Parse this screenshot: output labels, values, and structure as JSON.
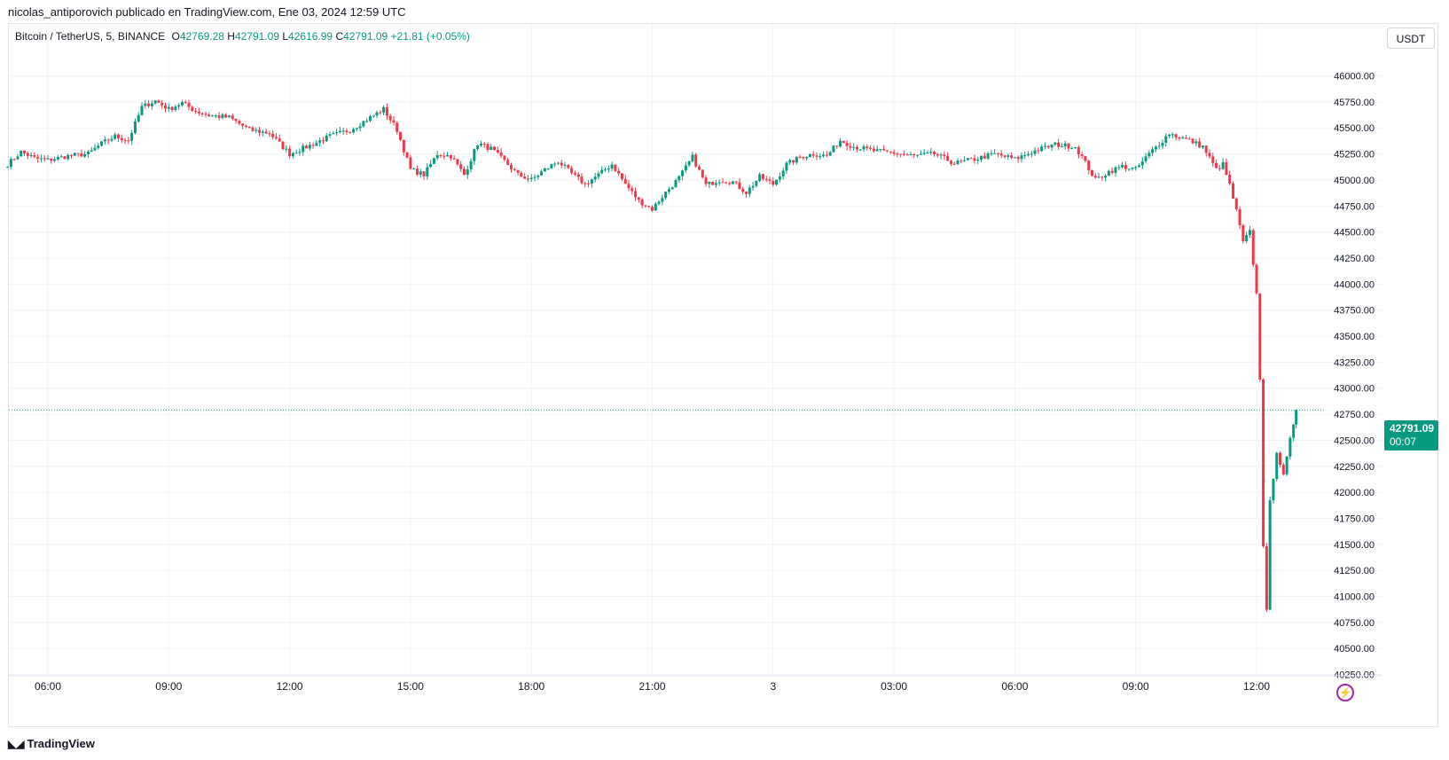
{
  "header": {
    "attribution": "nicolas_antiporovich publicado en TradingView.com, Ene 03, 2024 12:59 UTC"
  },
  "legend": {
    "symbol": "Bitcoin / TetherUS, 5, BINANCE",
    "open_label": "O",
    "open": "42769.28",
    "high_label": "H",
    "high": "42791.09",
    "low_label": "L",
    "low": "42616.99",
    "close_label": "C",
    "close": "42791.09",
    "change": "+21.81 (+0.05%)"
  },
  "currency_button": "USDT",
  "last_price": {
    "value": "42791.09",
    "countdown": "00:07"
  },
  "footer": {
    "brand": "TradingView"
  },
  "colors": {
    "up": "#089981",
    "down": "#f23645",
    "grid": "#f0f3fa",
    "axis_text": "#131722",
    "accent": "#9c27b0"
  },
  "icons": {
    "alert": "lightning-icon",
    "logo": "tradingview-logo-icon"
  },
  "chart_data": {
    "type": "candlestick",
    "title": "",
    "xlabel": "",
    "ylabel": "",
    "ylim": [
      40250,
      46250
    ],
    "y_ticks": [
      "46000.00",
      "45750.00",
      "45500.00",
      "45250.00",
      "45000.00",
      "44750.00",
      "44500.00",
      "44250.00",
      "44000.00",
      "43750.00",
      "43500.00",
      "43250.00",
      "43000.00",
      "42750.00",
      "42500.00",
      "42250.00",
      "42000.00",
      "41750.00",
      "41500.00",
      "41250.00",
      "41000.00",
      "40750.00",
      "40500.00",
      "40250.00"
    ],
    "x_ticks": [
      "06:00",
      "09:00",
      "12:00",
      "15:00",
      "18:00",
      "21:00",
      "3",
      "03:00",
      "06:00",
      "09:00",
      "12:00"
    ],
    "grid": true,
    "price_line": 42791.09,
    "anchors": [
      [
        "05:00",
        45150
      ],
      [
        "05:20",
        45270
      ],
      [
        "05:40",
        45210
      ],
      [
        "06:00",
        45190
      ],
      [
        "06:30",
        45230
      ],
      [
        "07:00",
        45250
      ],
      [
        "07:20",
        45350
      ],
      [
        "07:40",
        45420
      ],
      [
        "08:00",
        45380
      ],
      [
        "08:20",
        45700
      ],
      [
        "08:40",
        45760
      ],
      [
        "09:00",
        45680
      ],
      [
        "09:20",
        45740
      ],
      [
        "09:40",
        45660
      ],
      [
        "10:00",
        45620
      ],
      [
        "10:30",
        45600
      ],
      [
        "11:00",
        45480
      ],
      [
        "11:30",
        45450
      ],
      [
        "12:00",
        45250
      ],
      [
        "12:30",
        45330
      ],
      [
        "13:00",
        45420
      ],
      [
        "13:30",
        45480
      ],
      [
        "14:00",
        45600
      ],
      [
        "14:20",
        45680
      ],
      [
        "14:40",
        45480
      ],
      [
        "15:00",
        45100
      ],
      [
        "15:20",
        45050
      ],
      [
        "15:40",
        45250
      ],
      [
        "16:00",
        45230
      ],
      [
        "16:20",
        45050
      ],
      [
        "16:40",
        45350
      ],
      [
        "17:00",
        45300
      ],
      [
        "17:20",
        45180
      ],
      [
        "17:40",
        45050
      ],
      [
        "18:00",
        45000
      ],
      [
        "18:20",
        45100
      ],
      [
        "18:40",
        45180
      ],
      [
        "19:00",
        45060
      ],
      [
        "19:20",
        44960
      ],
      [
        "19:40",
        45050
      ],
      [
        "20:00",
        45150
      ],
      [
        "20:20",
        44960
      ],
      [
        "20:40",
        44800
      ],
      [
        "21:00",
        44720
      ],
      [
        "21:20",
        44880
      ],
      [
        "21:40",
        45020
      ],
      [
        "22:00",
        45220
      ],
      [
        "22:20",
        44950
      ],
      [
        "22:40",
        45000
      ],
      [
        "23:00",
        44980
      ],
      [
        "23:20",
        44880
      ],
      [
        "23:40",
        45030
      ],
      [
        "00:00",
        44960
      ],
      [
        "00:20",
        45150
      ],
      [
        "00:40",
        45220
      ],
      [
        "01:00",
        45250
      ],
      [
        "01:20",
        45230
      ],
      [
        "01:40",
        45380
      ],
      [
        "02:00",
        45320
      ],
      [
        "02:30",
        45280
      ],
      [
        "03:00",
        45260
      ],
      [
        "03:30",
        45230
      ],
      [
        "04:00",
        45250
      ],
      [
        "04:30",
        45160
      ],
      [
        "05:00",
        45200
      ],
      [
        "05:30",
        45250
      ],
      [
        "06:00",
        45200
      ],
      [
        "06:30",
        45280
      ],
      [
        "07:00",
        45340
      ],
      [
        "07:30",
        45320
      ],
      [
        "07:40",
        45220
      ],
      [
        "08:00",
        45000
      ],
      [
        "08:20",
        45080
      ],
      [
        "08:40",
        45130
      ],
      [
        "09:00",
        45100
      ],
      [
        "09:20",
        45250
      ],
      [
        "09:40",
        45380
      ],
      [
        "09:50",
        45450
      ],
      [
        "10:00",
        45420
      ],
      [
        "10:20",
        45380
      ],
      [
        "10:40",
        45320
      ],
      [
        "11:00",
        45100
      ],
      [
        "11:10",
        45150
      ],
      [
        "11:20",
        44950
      ],
      [
        "11:30",
        44700
      ],
      [
        "11:40",
        44400
      ],
      [
        "11:50",
        44500
      ],
      [
        "12:00",
        43900
      ],
      [
        "12:05",
        43100
      ],
      [
        "12:10",
        41500
      ],
      [
        "12:15",
        40850
      ],
      [
        "12:20",
        41900
      ],
      [
        "12:30",
        42400
      ],
      [
        "12:40",
        42150
      ],
      [
        "12:50",
        42500
      ],
      [
        "12:59",
        42791.09
      ]
    ]
  }
}
